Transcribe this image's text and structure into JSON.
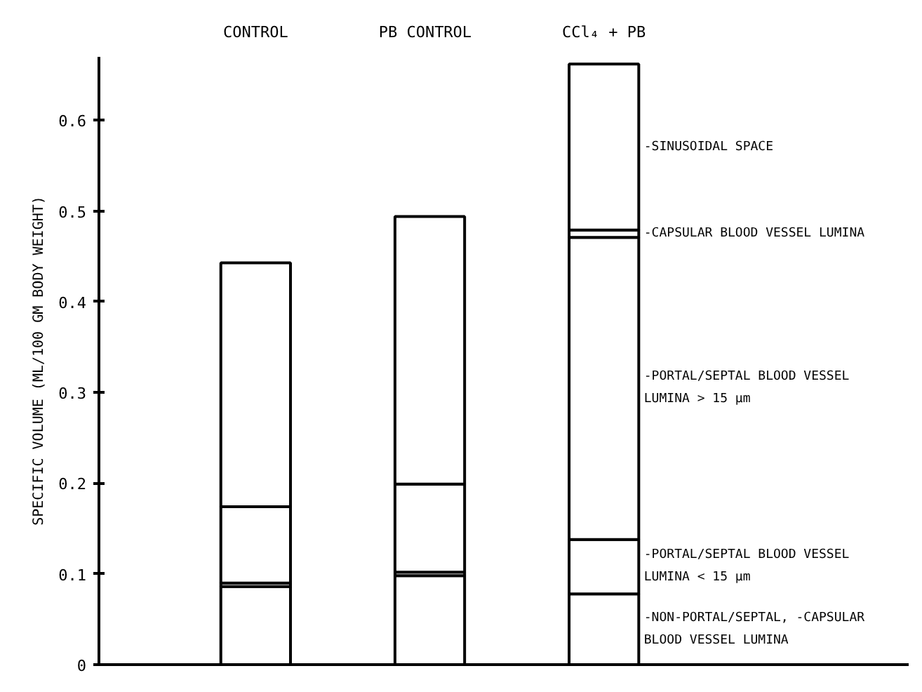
{
  "chart_data": {
    "type": "bar",
    "stacked": true,
    "ylabel": "SPECIFIC VOLUME (ML/100 GM BODY WEIGHT)",
    "categories": [
      "CONTROL",
      "PB  CONTROL",
      "CCl₄ + PB"
    ],
    "ylim": [
      0,
      0.67
    ],
    "yticks": [
      0,
      0.1,
      0.2,
      0.3,
      0.4,
      0.5,
      0.6
    ],
    "grid": false,
    "series": [
      {
        "name": "-NON-PORTAL/SEPTAL, -CAPSULAR\n        BLOOD VESSEL LUMINA",
        "color": "#ffffff",
        "values": [
          0.086,
          0.098,
          0.078
        ]
      },
      {
        "name": "-PORTAL/SEPTAL BLOOD VESSEL\n        LUMINA  < 15 μm",
        "color": "#ffffff",
        "values": [
          0.004,
          0.004,
          0.06
        ]
      },
      {
        "name": "-PORTAL/SEPTAL BLOOD VESSEL\n        LUMINA  > 15 μm",
        "color": "#ffffff",
        "values": [
          0.084,
          0.097,
          0.333
        ]
      },
      {
        "name": "-CAPSULAR BLOOD VESSEL LUMINA",
        "color": "#ffffff",
        "values": [
          null,
          null,
          0.008
        ]
      },
      {
        "name": "-SINUSOIDAL SPACE",
        "color": "#ffffff",
        "values": [
          0.269,
          0.295,
          0.183
        ]
      }
    ]
  }
}
